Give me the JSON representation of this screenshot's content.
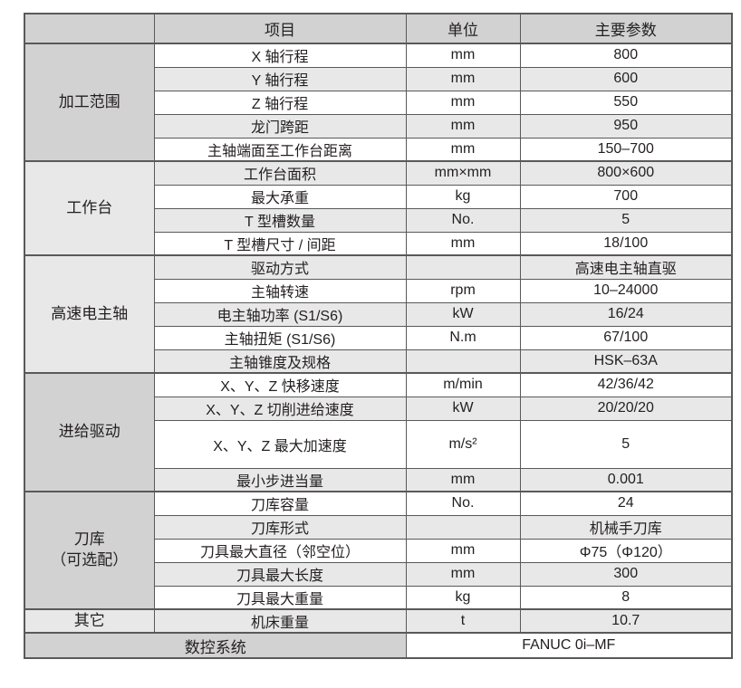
{
  "colors": {
    "header_bg": "#d2d2d2",
    "category_bg": "#d2d2d2",
    "stripe_bg": "#e8e8e8",
    "row_bg": "#ffffff",
    "border": "#58595b",
    "text": "#231f20"
  },
  "table": {
    "headers": {
      "category": "",
      "item": "项目",
      "unit": "单位",
      "value": "主要参数"
    },
    "sections": [
      {
        "category": "加工范围",
        "rows": [
          {
            "item": "X 轴行程",
            "unit": "mm",
            "value": "800"
          },
          {
            "item": "Y 轴行程",
            "unit": "mm",
            "value": "600"
          },
          {
            "item": "Z 轴行程",
            "unit": "mm",
            "value": "550"
          },
          {
            "item": "龙门跨距",
            "unit": "mm",
            "value": "950"
          },
          {
            "item": "主轴端面至工作台距离",
            "unit": "mm",
            "value": "150–700"
          }
        ]
      },
      {
        "category": "工作台",
        "rows": [
          {
            "item": "工作台面积",
            "unit": "mm×mm",
            "value": "800×600"
          },
          {
            "item": "最大承重",
            "unit": "kg",
            "value": "700"
          },
          {
            "item": "T 型槽数量",
            "unit": "No.",
            "value": "5"
          },
          {
            "item": "T 型槽尺寸 / 间距",
            "unit": "mm",
            "value": "18/100"
          }
        ]
      },
      {
        "category": "高速电主轴",
        "rows": [
          {
            "item": "驱动方式",
            "unit": "",
            "value": "高速电主轴直驱"
          },
          {
            "item": "主轴转速",
            "unit": "rpm",
            "value": "10–24000"
          },
          {
            "item": "电主轴功率 (S1/S6)",
            "unit": "kW",
            "value": "16/24"
          },
          {
            "item": "主轴扭矩 (S1/S6)",
            "unit": "N.m",
            "value": "67/100"
          },
          {
            "item": "主轴锥度及规格",
            "unit": "",
            "value": "HSK–63A"
          }
        ]
      },
      {
        "category": "进给驱动",
        "rows": [
          {
            "item": "X、Y、Z 快移速度",
            "unit": "m/min",
            "value": "42/36/42"
          },
          {
            "item": "X、Y、Z 切削进给速度",
            "unit": "kW",
            "value": "20/20/20"
          },
          {
            "item": "X、Y、Z 最大加速度",
            "unit": "m/s²",
            "value": "5"
          },
          {
            "item": "最小步进当量",
            "unit": "mm",
            "value": "0.001"
          }
        ]
      },
      {
        "category": "刀库\n（可选配）",
        "rows": [
          {
            "item": "刀库容量",
            "unit": "No.",
            "value": "24"
          },
          {
            "item": "刀库形式",
            "unit": "",
            "value": "机械手刀库"
          },
          {
            "item": "刀具最大直径（邻空位）",
            "unit": "mm",
            "value": "Φ75（Φ120）"
          },
          {
            "item": "刀具最大长度",
            "unit": "mm",
            "value": "300"
          },
          {
            "item": "刀具最大重量",
            "unit": "kg",
            "value": "8"
          }
        ]
      },
      {
        "category": "其它",
        "rows": [
          {
            "item": "机床重量",
            "unit": "t",
            "value": "10.7"
          }
        ]
      }
    ],
    "footer": {
      "label": "数控系统",
      "value": "FANUC 0i–MF"
    }
  }
}
